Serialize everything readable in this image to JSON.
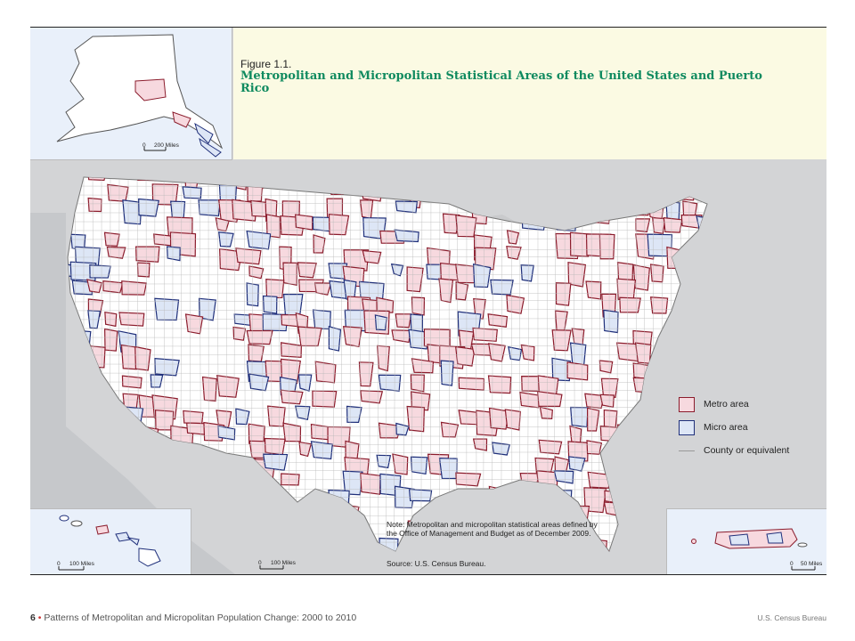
{
  "figure": {
    "label": "Figure 1.1.",
    "title": "Metropolitan and Micropolitan Statistical Areas of the United States and Puerto Rico"
  },
  "legend": {
    "metro": "Metro area",
    "micro": "Micro area",
    "county": "County or equivalent",
    "metro_fill": "#f7d9df",
    "metro_stroke": "#8b1c2c",
    "micro_fill": "#dde6f6",
    "micro_stroke": "#1f2f7a"
  },
  "note": "Note: Metropolitan and micropolitan statistical areas defined by the Office of Management and Budget as of December 2009.",
  "source": "Source: U.S. Census Bureau.",
  "scales": {
    "alaska": {
      "zero": "0",
      "label": "200 Miles"
    },
    "hawaii": {
      "zero": "0",
      "label": "100 Miles"
    },
    "main": {
      "zero": "0",
      "label": "100 Miles"
    },
    "puerto_rico": {
      "zero": "0",
      "label": "50 Miles"
    }
  },
  "footer": {
    "page_number": "6",
    "separator": "•",
    "left_text": "Patterns of Metropolitan and Micropolitan Population Change: 2000 to 2010",
    "right_text": "U.S. Census Bureau"
  }
}
